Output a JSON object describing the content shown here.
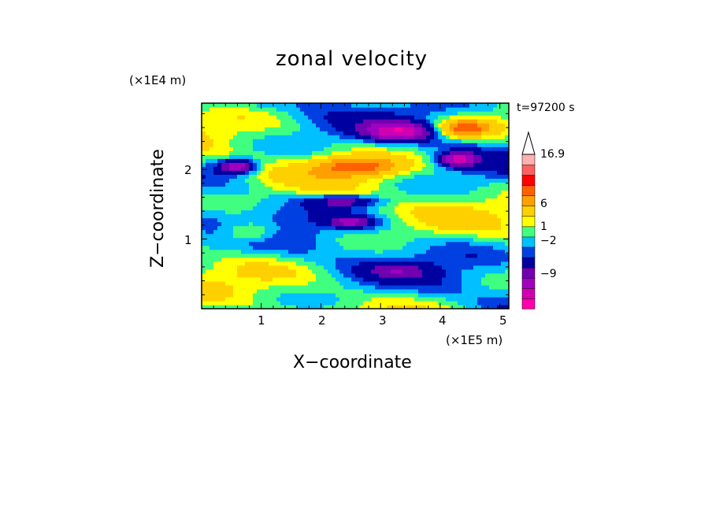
{
  "chart_data": {
    "type": "heatmap",
    "title": "zonal velocity",
    "xlabel": "X−coordinate",
    "ylabel": "Z−coordinate",
    "x_multiplier": "(×1E5 m)",
    "y_multiplier": "(×1E4 m)",
    "time_label": "t=97200 s",
    "xlim": [
      0,
      5.15
    ],
    "ylim": [
      0,
      2.95
    ],
    "xticks": [
      "1",
      "2",
      "3",
      "4",
      "5"
    ],
    "xtick_values": [
      1,
      2,
      3,
      4,
      5
    ],
    "yticks": [
      "1",
      "2"
    ],
    "ytick_values": [
      1,
      2
    ],
    "colorbar": {
      "labels": [
        "16.9",
        "6",
        "1",
        "−2",
        "−9"
      ],
      "levels": [
        -15,
        -12,
        -9,
        -6,
        -4,
        -2,
        -1,
        0,
        1,
        2,
        4,
        6,
        9,
        12,
        16.9
      ],
      "colors": [
        "#ff00aa",
        "#d000b0",
        "#a000c0",
        "#7000b0",
        "#0000a0",
        "#0040e0",
        "#00c0ff",
        "#40ff80",
        "#ffff00",
        "#ffd000",
        "#ffa000",
        "#ff6000",
        "#ff0000",
        "#ff6060",
        "#ffb0b0"
      ],
      "extend": "max"
    },
    "field_description_value_ranges": {
      "min": -9,
      "max": 9
    }
  }
}
